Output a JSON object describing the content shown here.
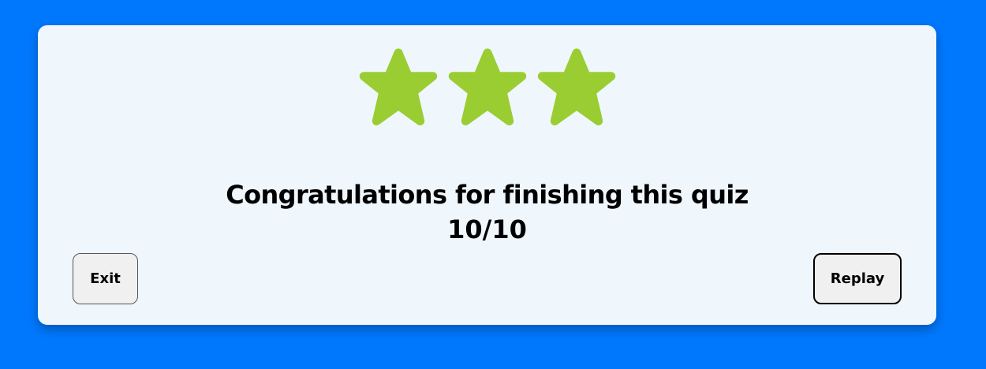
{
  "result": {
    "rating": 3,
    "max_rating": 3,
    "star_color": "#9acd32",
    "message": "Congratulations for finishing this quiz",
    "score": "10/10"
  },
  "actions": {
    "exit_label": "Exit",
    "replay_label": "Replay"
  },
  "colors": {
    "background": "#0078fe",
    "card": "#eff7fd",
    "button": "#f0f0f0"
  }
}
